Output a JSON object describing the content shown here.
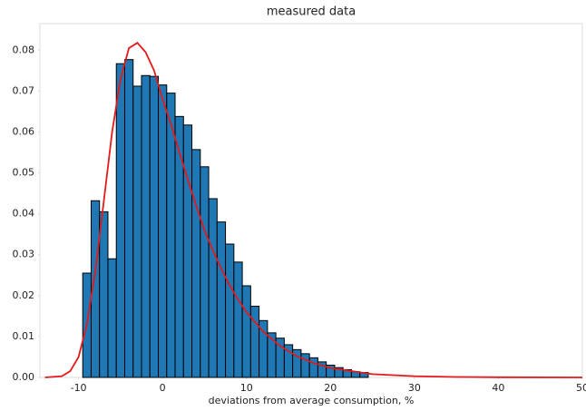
{
  "chart_data": {
    "type": "histogram",
    "title": "measured data",
    "x_label": "deviations from average consumption, %",
    "bins": [
      -9.5,
      -8.5,
      -7.5,
      -6.5,
      -5.5,
      -4.5,
      -3.5,
      -2.5,
      -1.5,
      -0.5,
      0.5,
      1.5,
      2.5,
      3.5,
      4.5,
      5.5,
      6.5,
      7.5,
      8.5,
      9.5,
      10.5,
      11.5,
      12.5,
      13.5,
      14.5,
      15.5,
      16.5,
      17.5,
      18.5,
      19.5,
      20.5,
      21.5,
      22.5,
      23.5,
      24.5
    ],
    "values": [
      0.0255,
      0.0432,
      0.0405,
      0.029,
      0.0767,
      0.0777,
      0.0712,
      0.0738,
      0.0736,
      0.0715,
      0.0695,
      0.0638,
      0.0617,
      0.0557,
      0.0515,
      0.0437,
      0.038,
      0.0326,
      0.0282,
      0.0224,
      0.0174,
      0.0139,
      0.0109,
      0.0096,
      0.008,
      0.0068,
      0.0058,
      0.0048,
      0.0038,
      0.003,
      0.0024,
      0.0019,
      0.0014,
      0.0012
    ],
    "color": "#1f77b4",
    "curve": {
      "x": [
        -14,
        -12,
        -11,
        -10,
        -9,
        -8,
        -7,
        -6,
        -5,
        -4,
        -3,
        -2,
        -1,
        0,
        1,
        2,
        3,
        4,
        5,
        6,
        7,
        8,
        9,
        10,
        12,
        14,
        16,
        18,
        20,
        25,
        30,
        35,
        40,
        50
      ],
      "values": [
        0,
        0.0003,
        0.0015,
        0.005,
        0.013,
        0.026,
        0.043,
        0.06,
        0.073,
        0.0805,
        0.0818,
        0.0795,
        0.075,
        0.068,
        0.062,
        0.055,
        0.0485,
        0.042,
        0.036,
        0.031,
        0.0265,
        0.0225,
        0.019,
        0.016,
        0.0112,
        0.0077,
        0.0052,
        0.0035,
        0.0023,
        0.0008,
        0.0003,
        0.0001,
        5e-05,
        0
      ],
      "color": "#e31a1c"
    },
    "xlim": [
      -14.6,
      50
    ],
    "ylim": [
      0,
      0.0865
    ],
    "xticks": [
      -10,
      0,
      10,
      20,
      30,
      40,
      50
    ],
    "yticks": [
      {
        "value": 0,
        "label": "0.00"
      },
      0.01,
      0.02,
      0.03,
      0.04,
      0.05,
      0.06,
      0.07,
      0.08
    ]
  }
}
